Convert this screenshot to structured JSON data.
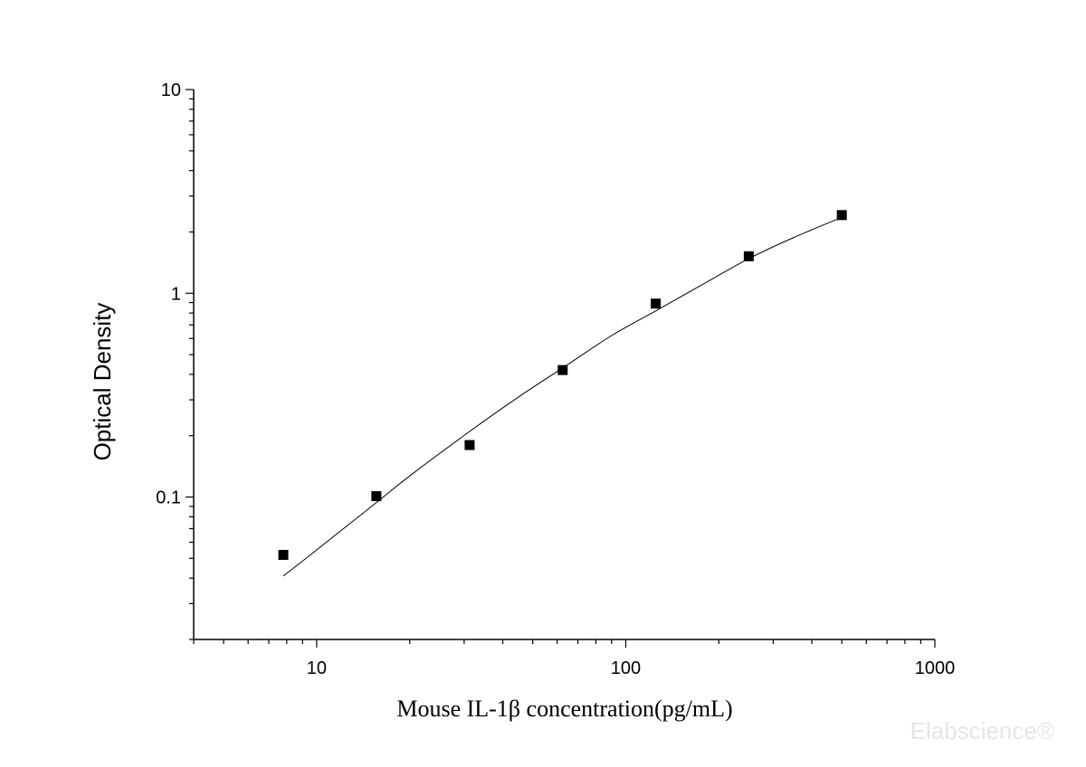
{
  "chart_data": {
    "type": "scatter",
    "title": "",
    "xlabel": "Mouse IL-1β  concentration(pg/mL)",
    "ylabel": "Optical Density",
    "xscale": "log",
    "yscale": "log",
    "xlim": [
      4,
      1000
    ],
    "ylim": [
      0.02,
      10
    ],
    "x_ticks": [
      10,
      100,
      1000
    ],
    "x_tick_labels": [
      "10",
      "100",
      "1000"
    ],
    "y_ticks": [
      0.1,
      1,
      10
    ],
    "y_tick_labels": [
      "0.1",
      "1",
      "10"
    ],
    "grid": false,
    "legend": "none",
    "series": [
      {
        "x": [
          7.8,
          15.6,
          31.25,
          62.5,
          125,
          250,
          500
        ],
        "y": [
          0.052,
          0.101,
          0.18,
          0.42,
          0.89,
          1.52,
          2.42
        ],
        "marker": "square",
        "color": "#000000"
      }
    ],
    "fit_curve": {
      "x": [
        7.8,
        10,
        15.6,
        20,
        31.25,
        45,
        62.5,
        90,
        125,
        180,
        250,
        350,
        500
      ],
      "y": [
        0.041,
        0.055,
        0.094,
        0.127,
        0.21,
        0.31,
        0.43,
        0.62,
        0.82,
        1.12,
        1.48,
        1.88,
        2.36
      ],
      "color": "#000000"
    }
  },
  "watermark": "Elabscience®"
}
